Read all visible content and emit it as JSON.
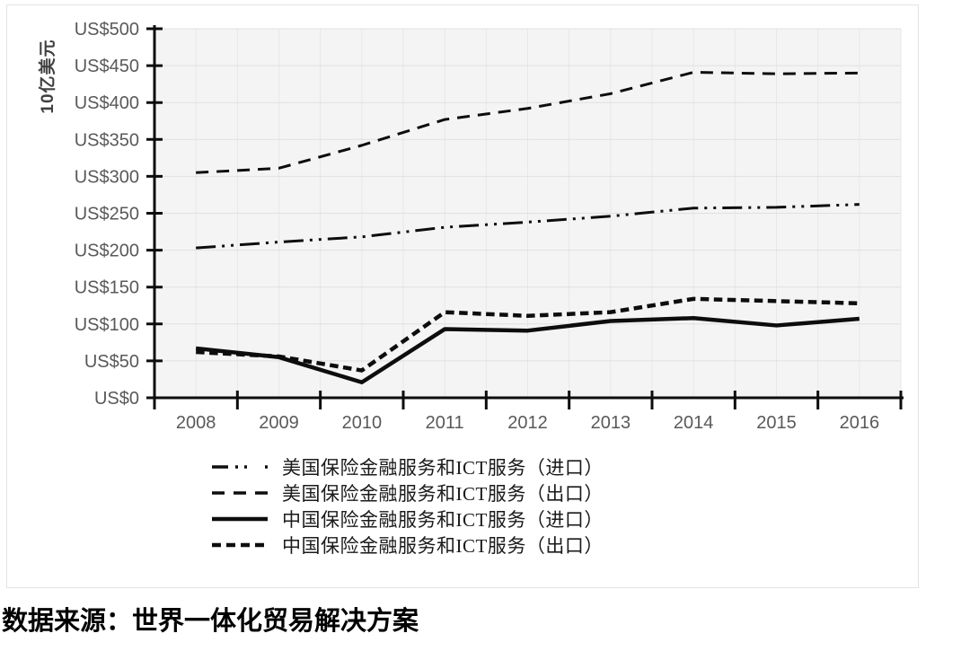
{
  "page": {
    "source_note": "数据来源：世界一体化贸易解决方案"
  },
  "chart_data": {
    "type": "line",
    "title": "",
    "xlabel": "",
    "ylabel": "10亿美元",
    "ylim": [
      0,
      500
    ],
    "y_tick_step": 50,
    "y_tick_labels": [
      "US$0",
      "US$50",
      "US$100",
      "US$150",
      "US$200",
      "US$250",
      "US$300",
      "US$350",
      "US$400",
      "US$450",
      "US$500"
    ],
    "categories": [
      "2008",
      "2009",
      "2010",
      "2011",
      "2012",
      "2013",
      "2014",
      "2015",
      "2016"
    ],
    "series": [
      {
        "name": "美国保险金融服务和ICT服务（进口）",
        "dash": "dash-dot-dot",
        "width": 3,
        "values": [
          203,
          211,
          218,
          231,
          238,
          246,
          257,
          258,
          262
        ]
      },
      {
        "name": "美国保险金融服务和ICT服务（出口）",
        "dash": "dashed",
        "width": 3,
        "values": [
          305,
          311,
          342,
          377,
          392,
          412,
          441,
          439,
          440
        ]
      },
      {
        "name": "中国保险金融服务和ICT服务（进口）",
        "dash": "solid",
        "width": 4.5,
        "values": [
          67,
          55,
          21,
          93,
          91,
          104,
          108,
          98,
          107
        ]
      },
      {
        "name": "中国保险金融服务和ICT服务（出口）",
        "dash": "dense-dashed",
        "width": 4.5,
        "values": [
          62,
          56,
          37,
          116,
          111,
          116,
          134,
          131,
          128
        ]
      }
    ],
    "legend_position": "bottom-left",
    "grid": true,
    "colors": {
      "line": "#0d0d0d",
      "axis": "#0d0d0d",
      "grid_h": "#e0e0e0",
      "grid_v": "#e7e7e7",
      "plot_bg": "#f4f4f4",
      "tick_text": "#595959",
      "frame": "#e3e3e3"
    }
  }
}
